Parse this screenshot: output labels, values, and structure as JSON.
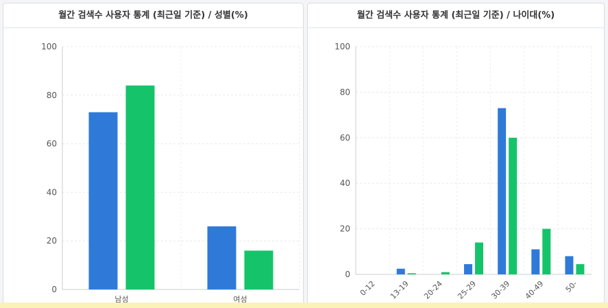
{
  "colors": {
    "series1": "#2f7ad8",
    "series2": "#15c46a"
  },
  "chart_data": [
    {
      "type": "bar",
      "title": "월간 검색수 사용자 통계 (최근일 기준) / 성별(%)",
      "categories": [
        "남성",
        "여성"
      ],
      "series": [
        {
          "values": [
            73,
            26
          ]
        },
        {
          "values": [
            84,
            16
          ]
        }
      ],
      "ylim": [
        0,
        100
      ],
      "yticks": [
        0,
        20,
        40,
        60,
        80,
        100
      ],
      "grid": true
    },
    {
      "type": "bar",
      "title": "월간 검색수 사용자 통계 (최근일 기준) / 나이대(%)",
      "categories": [
        "0-12",
        "13-19",
        "20-24",
        "25-29",
        "30-39",
        "40-49",
        "50-"
      ],
      "series": [
        {
          "values": [
            0,
            2.5,
            0,
            4.5,
            73,
            11,
            8
          ]
        },
        {
          "values": [
            0,
            0.5,
            1,
            14,
            60,
            20,
            4.5
          ]
        }
      ],
      "ylim": [
        0,
        100
      ],
      "yticks": [
        0,
        20,
        40,
        60,
        80,
        100
      ],
      "grid": true
    }
  ]
}
